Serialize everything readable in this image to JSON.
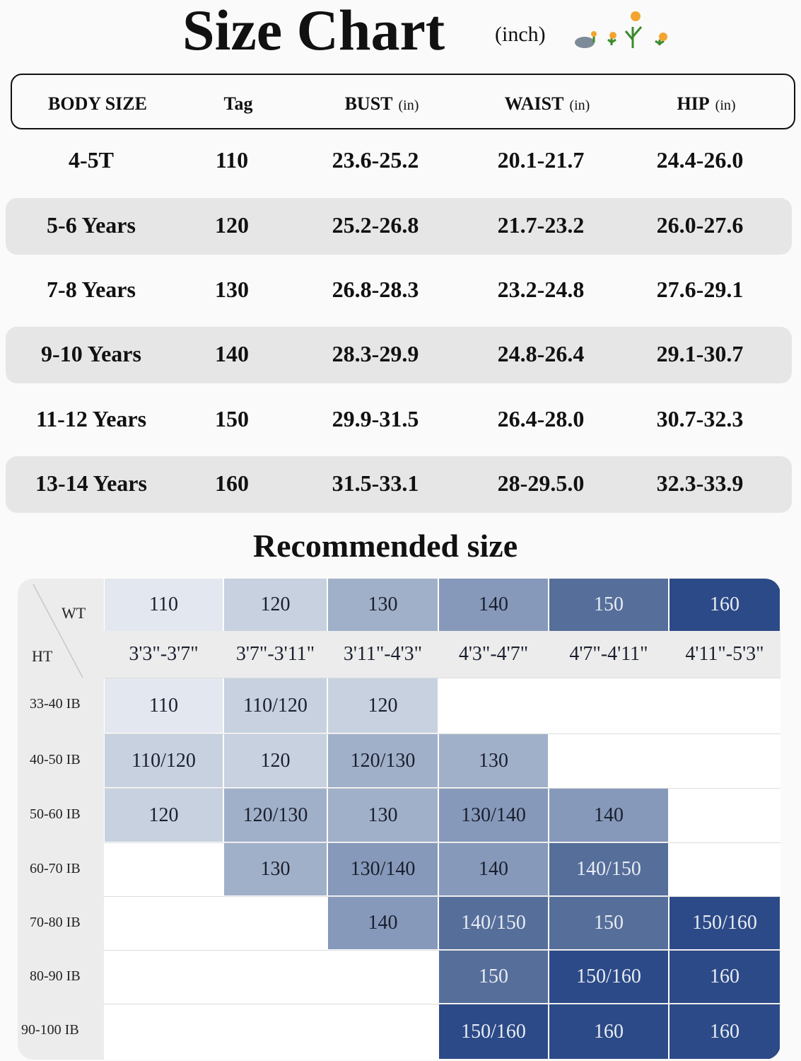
{
  "title": "Size Chart",
  "unit": "(inch)",
  "flower_icon": "flowers-decoration-icon",
  "table": {
    "headers": [
      {
        "label": "BODY SIZE",
        "unit": ""
      },
      {
        "label": "Tag",
        "unit": ""
      },
      {
        "label": "BUST",
        "unit": "(in)"
      },
      {
        "label": "WAIST",
        "unit": "(in)"
      },
      {
        "label": "HIP",
        "unit": "(in)"
      }
    ],
    "rows": [
      [
        "4-5T",
        "110",
        "23.6-25.2",
        "20.1-21.7",
        "24.4-26.0"
      ],
      [
        "5-6 Years",
        "120",
        "25.2-26.8",
        "21.7-23.2",
        "26.0-27.6"
      ],
      [
        "7-8 Years",
        "130",
        "26.8-28.3",
        "23.2-24.8",
        "27.6-29.1"
      ],
      [
        "9-10 Years",
        "140",
        "28.3-29.9",
        "24.8-26.4",
        "29.1-30.7"
      ],
      [
        "11-12 Years",
        "150",
        "29.9-31.5",
        "26.4-28.0",
        "30.7-32.3"
      ],
      [
        "13-14 Years",
        "160",
        "31.5-33.1",
        "28-29.5.0",
        "32.3-33.9"
      ]
    ]
  },
  "recommended": {
    "title": "Recommended size",
    "wt_label": "WT",
    "ht_label": "HT",
    "sizes": [
      "110",
      "120",
      "130",
      "140",
      "150",
      "160"
    ],
    "heights": [
      "3'3\"-3'7\"",
      "3'7\"-3'11\"",
      "3'11\"-4'3\"",
      "4'3\"-4'7\"",
      "4'7\"-4'11\"",
      "4'11\"-5'3\""
    ],
    "weights": [
      "33-40 IB",
      "40-50 IB",
      "50-60 IB",
      "60-70 IB",
      "70-80 IB",
      "80-90 IB",
      "90-100 IB"
    ],
    "cells": [
      [
        "110",
        "110/120",
        "120",
        "",
        "",
        ""
      ],
      [
        "110/120",
        "120",
        "120/130",
        "130",
        "",
        ""
      ],
      [
        "120",
        "120/130",
        "130",
        "130/140",
        "140",
        ""
      ],
      [
        "",
        "130",
        "130/140",
        "140",
        "140/150",
        ""
      ],
      [
        "",
        "",
        "140",
        "140/150",
        "150",
        "150/160"
      ],
      [
        "",
        "",
        "",
        "150",
        "150/160",
        "160"
      ],
      [
        "",
        "",
        "",
        "150/160",
        "160",
        "160"
      ]
    ],
    "colors": {
      "110": "#e3e8f0",
      "120": "#c7d1df",
      "130": "#a1b0c9",
      "140": "#8699ba",
      "150": "#566e9a",
      "160": "#2c4a87"
    }
  }
}
